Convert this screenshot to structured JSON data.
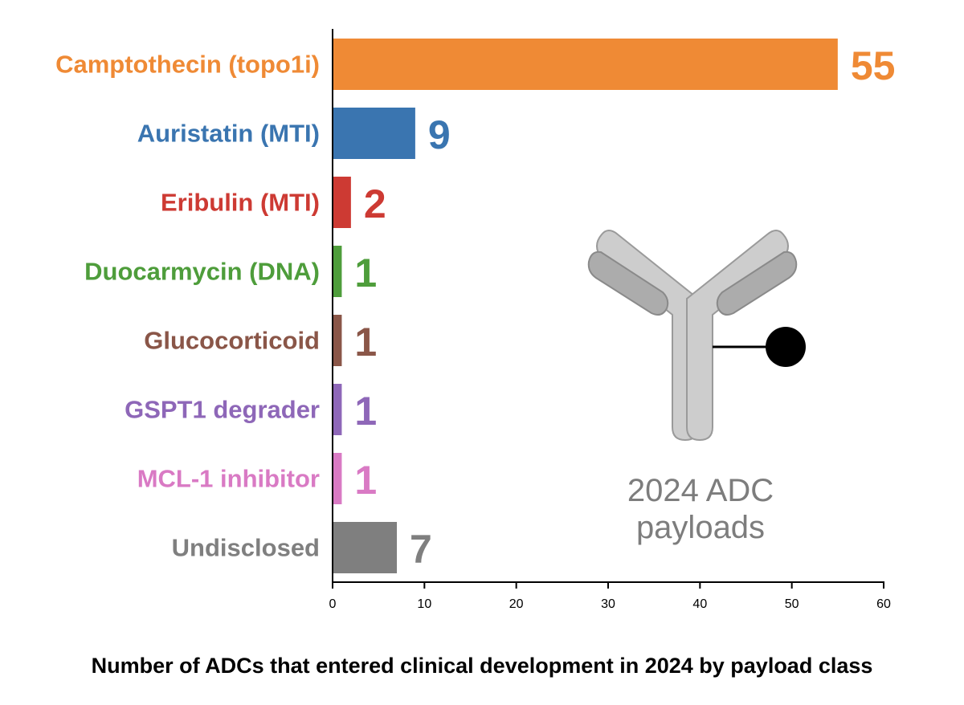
{
  "chart_data": {
    "type": "bar",
    "orientation": "horizontal",
    "categories": [
      "Camptothecin (topo1i)",
      "Auristatin (MTI)",
      "Eribulin (MTI)",
      "Duocarmycin (DNA)",
      "Glucocorticoid",
      "GSPT1 degrader",
      "MCL-1 inhibitor",
      "Undisclosed"
    ],
    "values": [
      55,
      9,
      2,
      1,
      1,
      1,
      1,
      7
    ],
    "value_labels": [
      "55",
      "9",
      "2",
      "1",
      "1",
      "1",
      "1",
      "7"
    ],
    "colors": [
      "#ef8a35",
      "#3a75b0",
      "#cd3a33",
      "#4e9d3b",
      "#8a5648",
      "#8e67b8",
      "#d97ac4",
      "#7f7f7f"
    ],
    "xlim": [
      0,
      60
    ],
    "xticks": [
      0,
      10,
      20,
      30,
      40,
      50,
      60
    ],
    "xtick_labels": [
      "0",
      "10",
      "20",
      "30",
      "40",
      "50",
      "60"
    ],
    "title": "Number of ADCs that entered clinical development in 2024 by payload class",
    "xlabel": "",
    "ylabel": "",
    "grid": false,
    "inset": {
      "icon": "antibody-drug-conjugate-icon",
      "line1": "2024 ADC",
      "line2": "payloads",
      "color": "#7d7d7d"
    }
  }
}
